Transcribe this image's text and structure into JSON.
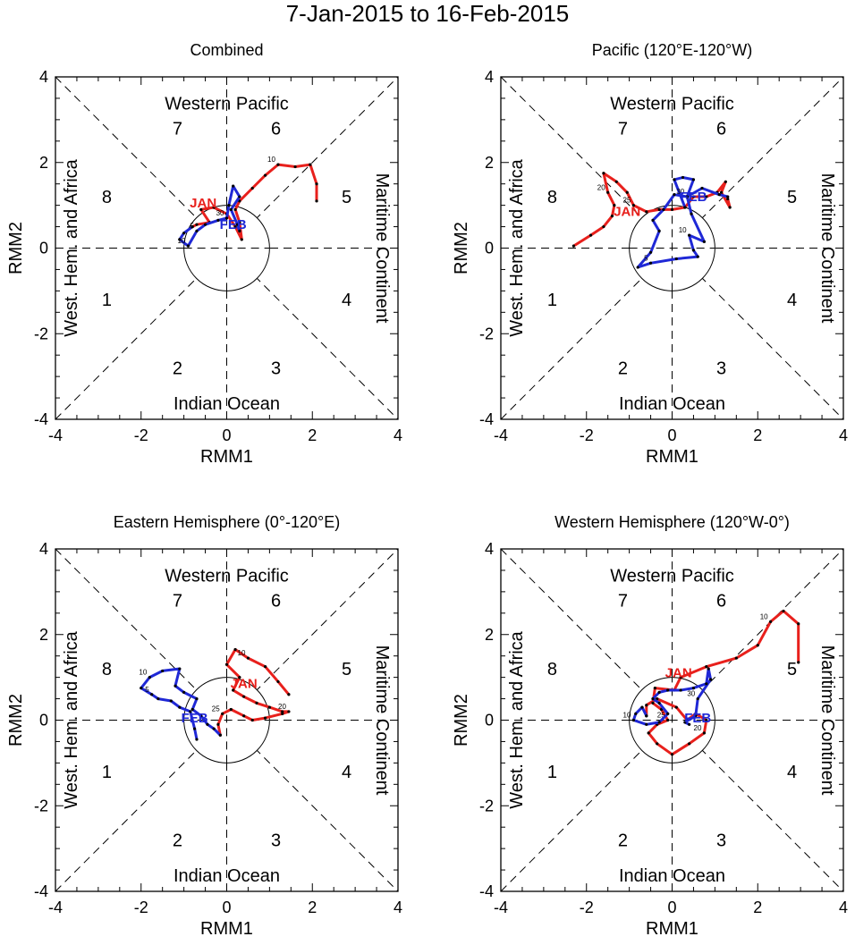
{
  "figure": {
    "title": "7-Jan-2015 to 16-Feb-2015",
    "colors": {
      "jan": "#e8201c",
      "feb": "#1f28d6",
      "axis": "#000000"
    }
  },
  "chart_data": [
    {
      "type": "line",
      "title": "Combined",
      "xlabel": "RMM1",
      "ylabel": "RMM2",
      "xlim": [
        -4,
        4
      ],
      "ylim": [
        -4,
        4
      ],
      "xticks": [
        "-4",
        "-2",
        "0",
        "2",
        "4"
      ],
      "yticks": [
        "-4",
        "-2",
        "0",
        "2",
        "4"
      ],
      "regions": {
        "top": "Western Pacific",
        "bottom": "Indian Ocean",
        "left": "West. Hem. and Africa",
        "right": "Maritime Continent"
      },
      "phases": [
        "1",
        "2",
        "3",
        "4",
        "5",
        "6",
        "7",
        "8"
      ],
      "series": [
        {
          "name": "JAN",
          "color": "#e8201c",
          "points": [
            [
              2.1,
              1.1
            ],
            [
              2.1,
              1.5
            ],
            [
              1.95,
              1.95
            ],
            [
              1.6,
              1.9
            ],
            [
              1.2,
              1.95
            ],
            [
              0.9,
              1.7
            ],
            [
              0.6,
              1.4
            ],
            [
              0.3,
              1.1
            ],
            [
              0.2,
              0.9
            ],
            [
              0.3,
              0.6
            ],
            [
              0.35,
              0.2
            ],
            [
              0.2,
              0.5
            ],
            [
              0.0,
              0.8
            ],
            [
              -0.3,
              0.95
            ],
            [
              -0.6,
              0.9
            ],
            [
              -0.4,
              0.6
            ],
            [
              -0.7,
              0.55
            ],
            [
              -0.8,
              0.5
            ]
          ],
          "day_labels": [
            {
              "text": "10",
              "point": 4
            }
          ],
          "month_label": {
            "text": "JAN",
            "x": -0.55,
            "y": 0.95
          }
        },
        {
          "name": "FEB",
          "color": "#1f28d6",
          "points": [
            [
              -0.8,
              0.5
            ],
            [
              -1.0,
              0.35
            ],
            [
              -1.1,
              0.2
            ],
            [
              -0.9,
              0.05
            ],
            [
              -0.7,
              0.4
            ],
            [
              -0.5,
              0.55
            ],
            [
              -0.2,
              0.65
            ],
            [
              0.0,
              0.7
            ],
            [
              0.05,
              1.0
            ],
            [
              0.15,
              1.45
            ],
            [
              0.3,
              1.2
            ],
            [
              0.1,
              0.9
            ],
            [
              0.25,
              0.55
            ],
            [
              0.3,
              0.4
            ]
          ],
          "day_labels": [
            {
              "text": "30",
              "point": 7
            },
            {
              "text": "5",
              "point": 4
            },
            {
              "text": "10",
              "point": 3
            }
          ],
          "month_label": {
            "text": "FEB",
            "x": 0.15,
            "y": 0.45
          }
        }
      ]
    },
    {
      "type": "line",
      "title": "Pacific (120°E-120°W)",
      "xlabel": "RMM1",
      "ylabel": "RMM2",
      "xlim": [
        -4,
        4
      ],
      "ylim": [
        -4,
        4
      ],
      "xticks": [
        "-4",
        "-2",
        "0",
        "2",
        "4"
      ],
      "yticks": [
        "-4",
        "-2",
        "0",
        "2",
        "4"
      ],
      "regions": {
        "top": "Western Pacific",
        "bottom": "Indian Ocean",
        "left": "West. Hem. and Africa",
        "right": "Maritime Continent"
      },
      "phases": [
        "1",
        "2",
        "3",
        "4",
        "5",
        "6",
        "7",
        "8"
      ],
      "series": [
        {
          "name": "JAN",
          "color": "#e8201c",
          "points": [
            [
              -2.3,
              0.05
            ],
            [
              -1.9,
              0.3
            ],
            [
              -1.6,
              0.5
            ],
            [
              -1.4,
              0.75
            ],
            [
              -1.35,
              1.0
            ],
            [
              -1.5,
              1.3
            ],
            [
              -1.6,
              1.75
            ],
            [
              -1.3,
              1.55
            ],
            [
              -1.05,
              1.3
            ],
            [
              -0.9,
              1.0
            ],
            [
              -0.6,
              0.85
            ],
            [
              -0.3,
              0.9
            ],
            [
              0.0,
              0.9
            ],
            [
              0.3,
              0.95
            ],
            [
              0.5,
              1.2
            ],
            [
              0.8,
              1.2
            ],
            [
              1.05,
              1.3
            ],
            [
              1.25,
              1.55
            ],
            [
              1.15,
              1.3
            ],
            [
              1.35,
              0.95
            ],
            [
              1.3,
              1.15
            ]
          ],
          "day_labels": [
            {
              "text": "20",
              "point": 5
            },
            {
              "text": "25",
              "point": 9
            }
          ],
          "month_label": {
            "text": "JAN",
            "x": -1.05,
            "y": 0.75
          }
        },
        {
          "name": "FEB",
          "color": "#1f28d6",
          "points": [
            [
              0.3,
              0.95
            ],
            [
              0.05,
              1.6
            ],
            [
              0.25,
              1.65
            ],
            [
              0.5,
              1.6
            ],
            [
              0.35,
              1.2
            ],
            [
              0.45,
              0.8
            ],
            [
              0.75,
              0.15
            ],
            [
              0.4,
              0.3
            ],
            [
              0.5,
              -0.05
            ],
            [
              0.6,
              -0.2
            ],
            [
              0.1,
              -0.25
            ],
            [
              -0.5,
              -0.35
            ],
            [
              -0.8,
              -0.45
            ],
            [
              -0.5,
              -0.1
            ],
            [
              -0.3,
              0.4
            ],
            [
              -0.45,
              0.65
            ],
            [
              -0.2,
              0.9
            ],
            [
              0.05,
              1.25
            ],
            [
              0.35,
              1.2
            ],
            [
              0.7,
              1.4
            ],
            [
              1.1,
              1.25
            ],
            [
              1.3,
              1.2
            ]
          ],
          "day_labels": [
            {
              "text": "30",
              "point": 4
            },
            {
              "text": "5",
              "point": 11
            },
            {
              "text": "10",
              "point": 7
            }
          ],
          "month_label": {
            "text": "FEB",
            "x": 0.5,
            "y": 1.1
          }
        }
      ]
    },
    {
      "type": "line",
      "title": "Eastern Hemisphere (0°-120°E)",
      "xlabel": "RMM1",
      "ylabel": "RMM2",
      "xlim": [
        -4,
        4
      ],
      "ylim": [
        -4,
        4
      ],
      "xticks": [
        "-4",
        "-2",
        "0",
        "2",
        "4"
      ],
      "yticks": [
        "-4",
        "-2",
        "0",
        "2",
        "4"
      ],
      "regions": {
        "top": "Western Pacific",
        "bottom": "Indian Ocean",
        "left": "West. Hem. and Africa",
        "right": "Maritime Continent"
      },
      "phases": [
        "1",
        "2",
        "3",
        "4",
        "5",
        "6",
        "7",
        "8"
      ],
      "series": [
        {
          "name": "JAN",
          "color": "#e8201c",
          "points": [
            [
              1.45,
              0.6
            ],
            [
              1.2,
              0.9
            ],
            [
              0.9,
              1.25
            ],
            [
              0.5,
              1.45
            ],
            [
              0.2,
              1.65
            ],
            [
              0.0,
              1.3
            ],
            [
              0.3,
              1.0
            ],
            [
              0.15,
              0.7
            ],
            [
              0.4,
              0.55
            ],
            [
              0.7,
              0.4
            ],
            [
              1.0,
              0.3
            ],
            [
              1.3,
              0.2
            ],
            [
              1.45,
              0.2
            ],
            [
              1.3,
              0.15
            ],
            [
              0.9,
              0.05
            ],
            [
              0.6,
              0.0
            ],
            [
              0.4,
              0.1
            ],
            [
              0.1,
              0.25
            ],
            [
              -0.1,
              0.15
            ],
            [
              -0.2,
              -0.1
            ],
            [
              -0.15,
              -0.35
            ]
          ],
          "day_labels": [
            {
              "text": "10",
              "point": 3
            },
            {
              "text": "20",
              "point": 12
            },
            {
              "text": "25",
              "point": 18
            }
          ],
          "month_label": {
            "text": "JAN",
            "x": 0.4,
            "y": 0.75
          }
        },
        {
          "name": "FEB",
          "color": "#1f28d6",
          "points": [
            [
              -0.15,
              -0.35
            ],
            [
              -0.3,
              -0.2
            ],
            [
              -0.45,
              -0.1
            ],
            [
              -0.6,
              0.1
            ],
            [
              -0.8,
              0.25
            ],
            [
              -0.7,
              0.5
            ],
            [
              -1.0,
              0.65
            ],
            [
              -1.2,
              0.8
            ],
            [
              -1.1,
              1.2
            ],
            [
              -1.5,
              1.15
            ],
            [
              -1.8,
              1.0
            ],
            [
              -2.0,
              0.75
            ],
            [
              -1.75,
              0.6
            ],
            [
              -1.6,
              0.5
            ],
            [
              -1.3,
              0.45
            ],
            [
              -1.1,
              0.3
            ],
            [
              -0.85,
              0.2
            ],
            [
              -0.75,
              -0.2
            ],
            [
              -0.7,
              -0.45
            ]
          ],
          "day_labels": [
            {
              "text": "10",
              "point": 10
            },
            {
              "text": "5",
              "point": 12
            }
          ],
          "month_label": {
            "text": "FEB",
            "x": -0.75,
            "y": -0.05
          }
        }
      ]
    },
    {
      "type": "line",
      "title": "Western Hemisphere (120°W-0°)",
      "xlabel": "RMM1",
      "ylabel": "RMM2",
      "xlim": [
        -4,
        4
      ],
      "ylim": [
        -4,
        4
      ],
      "xticks": [
        "-4",
        "-2",
        "0",
        "2",
        "4"
      ],
      "yticks": [
        "-4",
        "-2",
        "0",
        "2",
        "4"
      ],
      "regions": {
        "top": "Western Pacific",
        "bottom": "Indian Ocean",
        "left": "West. Hem. and Africa",
        "right": "Maritime Continent"
      },
      "phases": [
        "1",
        "2",
        "3",
        "4",
        "5",
        "6",
        "7",
        "8"
      ],
      "series": [
        {
          "name": "JAN",
          "color": "#e8201c",
          "points": [
            [
              2.95,
              1.35
            ],
            [
              2.95,
              2.25
            ],
            [
              2.6,
              2.55
            ],
            [
              2.3,
              2.3
            ],
            [
              2.0,
              1.75
            ],
            [
              1.5,
              1.45
            ],
            [
              0.8,
              1.25
            ],
            [
              0.2,
              1.0
            ],
            [
              0.05,
              0.7
            ],
            [
              -0.4,
              0.75
            ],
            [
              -0.45,
              0.4
            ],
            [
              -0.25,
              0.25
            ],
            [
              -0.1,
              0.0
            ],
            [
              -0.35,
              -0.1
            ],
            [
              -0.55,
              -0.3
            ],
            [
              -0.35,
              -0.55
            ],
            [
              0.0,
              -0.8
            ],
            [
              0.4,
              -0.55
            ],
            [
              0.75,
              -0.3
            ],
            [
              0.8,
              0.0
            ],
            [
              0.55,
              0.15
            ],
            [
              0.35,
              0.0
            ],
            [
              0.1,
              0.3
            ],
            [
              -0.35,
              0.5
            ],
            [
              -0.6,
              0.35
            ],
            [
              -0.6,
              0.1
            ]
          ],
          "day_labels": [
            {
              "text": "10",
              "point": 3
            },
            {
              "text": "25",
              "point": 12
            },
            {
              "text": "20",
              "point": 18
            }
          ],
          "month_label": {
            "text": "JAN",
            "x": 0.15,
            "y": 1.0
          }
        },
        {
          "name": "FEB",
          "color": "#1f28d6",
          "points": [
            [
              -0.6,
              0.1
            ],
            [
              -0.7,
              0.3
            ],
            [
              -0.85,
              0.15
            ],
            [
              -0.9,
              0.0
            ],
            [
              -0.6,
              -0.1
            ],
            [
              -0.3,
              -0.05
            ],
            [
              -0.1,
              0.15
            ],
            [
              -0.3,
              0.4
            ],
            [
              -0.45,
              0.5
            ],
            [
              -0.3,
              0.65
            ],
            [
              -0.1,
              0.7
            ],
            [
              0.2,
              0.7
            ],
            [
              0.5,
              0.75
            ],
            [
              0.8,
              0.85
            ],
            [
              0.85,
              1.2
            ],
            [
              0.9,
              0.95
            ],
            [
              0.6,
              0.5
            ],
            [
              0.55,
              0.1
            ],
            [
              0.3,
              -0.05
            ],
            [
              0.4,
              -0.1
            ]
          ],
          "day_labels": [
            {
              "text": "10",
              "point": 3
            },
            {
              "text": "30",
              "point": 16
            }
          ],
          "month_label": {
            "text": "FEB",
            "x": 0.6,
            "y": -0.05
          }
        }
      ]
    }
  ]
}
